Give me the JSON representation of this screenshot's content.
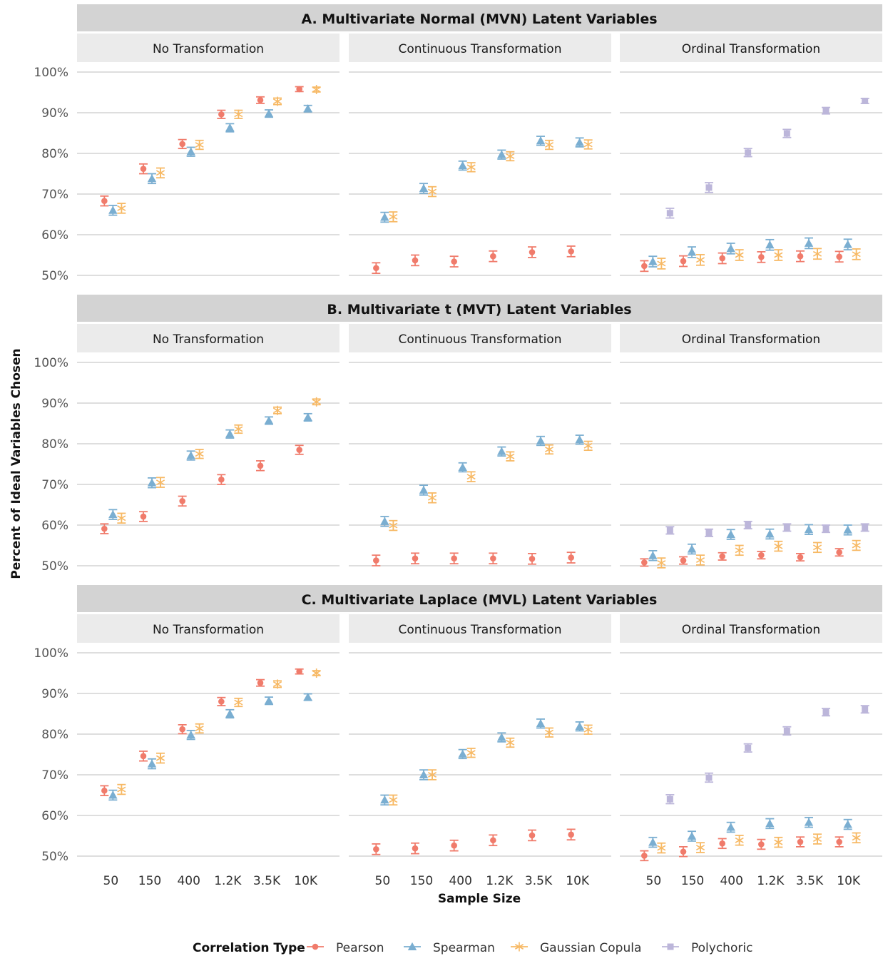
{
  "chart_data": {
    "type": "scatter",
    "ylabel": "Percent of Ideal Variables Chosen",
    "xlabel": "Sample Size",
    "categories": [
      "50",
      "150",
      "400",
      "1.2K",
      "3.5K",
      "10K"
    ],
    "y_ticks": [
      "50%",
      "60%",
      "70%",
      "80%",
      "90%",
      "100%"
    ],
    "ylim": [
      48,
      103
    ],
    "grid": true,
    "legend": {
      "title": "Correlation Type",
      "position": "bottom",
      "items": [
        {
          "name": "Pearson",
          "color": "#F07B6B",
          "marker": "circle"
        },
        {
          "name": "Spearman",
          "color": "#7AAED1",
          "marker": "triangle"
        },
        {
          "name": "Gaussian Copula",
          "color": "#F7B965",
          "marker": "asterisk"
        },
        {
          "name": "Polychoric",
          "color": "#BCB6DA",
          "marker": "square"
        }
      ]
    },
    "column_titles": [
      "No Transformation",
      "Continuous Transformation",
      "Ordinal Transformation"
    ],
    "rows": [
      {
        "title": "A.  Multivariate Normal (MVN) Latent Variables",
        "panels": [
          {
            "series": [
              {
                "name": "Pearson",
                "values": [
                  68.3,
                  76.2,
                  82.3,
                  89.6,
                  93.1,
                  95.8
                ],
                "errors": [
                  1.2,
                  1.2,
                  1.1,
                  1.0,
                  0.8,
                  0.6
                ]
              },
              {
                "name": "Spearman",
                "values": [
                  66.0,
                  73.8,
                  80.4,
                  86.3,
                  89.8,
                  91.0
                ],
                "errors": [
                  1.2,
                  1.2,
                  1.1,
                  1.0,
                  0.9,
                  0.8
                ]
              },
              {
                "name": "Gaussian Copula",
                "values": [
                  66.5,
                  75.2,
                  82.1,
                  89.6,
                  92.8,
                  95.7
                ],
                "errors": [
                  1.2,
                  1.2,
                  1.1,
                  1.0,
                  0.8,
                  0.6
                ]
              }
            ]
          },
          {
            "series": [
              {
                "name": "Pearson",
                "values": [
                  51.8,
                  53.7,
                  53.4,
                  54.7,
                  55.7,
                  55.9
                ],
                "errors": [
                  1.3,
                  1.3,
                  1.3,
                  1.3,
                  1.3,
                  1.3
                ]
              },
              {
                "name": "Spearman",
                "values": [
                  64.3,
                  71.4,
                  77.0,
                  79.7,
                  83.1,
                  82.7
                ],
                "errors": [
                  1.2,
                  1.2,
                  1.1,
                  1.1,
                  1.1,
                  1.1
                ]
              },
              {
                "name": "Gaussian Copula",
                "values": [
                  64.4,
                  70.6,
                  76.6,
                  79.3,
                  82.1,
                  82.2
                ],
                "errors": [
                  1.2,
                  1.2,
                  1.1,
                  1.1,
                  1.1,
                  1.1
                ]
              }
            ]
          },
          {
            "series": [
              {
                "name": "Pearson",
                "values": [
                  52.3,
                  53.5,
                  54.2,
                  54.5,
                  54.7,
                  54.6
                ],
                "errors": [
                  1.3,
                  1.3,
                  1.3,
                  1.3,
                  1.3,
                  1.3
                ]
              },
              {
                "name": "Spearman",
                "values": [
                  53.4,
                  55.7,
                  56.6,
                  57.5,
                  57.9,
                  57.6
                ],
                "errors": [
                  1.3,
                  1.3,
                  1.3,
                  1.3,
                  1.3,
                  1.3
                ]
              },
              {
                "name": "Gaussian Copula",
                "values": [
                  52.9,
                  53.8,
                  55.0,
                  55.0,
                  55.3,
                  55.2
                ],
                "errors": [
                  1.3,
                  1.3,
                  1.3,
                  1.3,
                  1.3,
                  1.3
                ]
              },
              {
                "name": "Polychoric",
                "values": [
                  65.3,
                  71.6,
                  80.2,
                  84.9,
                  90.5,
                  92.9
                ],
                "errors": [
                  1.2,
                  1.2,
                  1.0,
                  1.0,
                  0.8,
                  0.6
                ]
              }
            ]
          }
        ]
      },
      {
        "title": "B.  Multivariate t (MVT) Latent Variables",
        "panels": [
          {
            "series": [
              {
                "name": "Pearson",
                "values": [
                  59.1,
                  62.1,
                  65.9,
                  71.2,
                  74.6,
                  78.5
                ],
                "errors": [
                  1.2,
                  1.2,
                  1.2,
                  1.2,
                  1.2,
                  1.1
                ]
              },
              {
                "name": "Spearman",
                "values": [
                  62.6,
                  70.4,
                  77.1,
                  82.4,
                  85.7,
                  86.5
                ],
                "errors": [
                  1.2,
                  1.2,
                  1.1,
                  1.0,
                  0.9,
                  0.9
                ]
              },
              {
                "name": "Gaussian Copula",
                "values": [
                  61.7,
                  70.5,
                  77.5,
                  83.6,
                  88.2,
                  90.3
                ],
                "errors": [
                  1.2,
                  1.2,
                  1.1,
                  1.0,
                  0.8,
                  0.7
                ]
              }
            ]
          },
          {
            "series": [
              {
                "name": "Pearson",
                "values": [
                  51.3,
                  51.8,
                  51.8,
                  51.8,
                  51.7,
                  52.0
                ],
                "errors": [
                  1.3,
                  1.3,
                  1.3,
                  1.3,
                  1.3,
                  1.3
                ]
              },
              {
                "name": "Spearman",
                "values": [
                  60.9,
                  68.6,
                  74.2,
                  78.1,
                  80.7,
                  81.0
                ],
                "errors": [
                  1.2,
                  1.2,
                  1.1,
                  1.1,
                  1.1,
                  1.1
                ]
              },
              {
                "name": "Gaussian Copula",
                "values": [
                  59.9,
                  66.7,
                  71.9,
                  76.9,
                  78.6,
                  79.5
                ],
                "errors": [
                  1.2,
                  1.2,
                  1.2,
                  1.1,
                  1.1,
                  1.1
                ]
              }
            ]
          },
          {
            "series": [
              {
                "name": "Pearson",
                "values": [
                  50.8,
                  51.3,
                  52.3,
                  52.6,
                  52.1,
                  53.3
                ],
                "errors": [
                  0.9,
                  0.9,
                  0.9,
                  0.9,
                  0.9,
                  0.9
                ]
              },
              {
                "name": "Spearman",
                "values": [
                  52.5,
                  54.1,
                  57.7,
                  57.8,
                  58.9,
                  58.8
                ],
                "errors": [
                  1.2,
                  1.2,
                  1.2,
                  1.2,
                  1.2,
                  1.2
                ]
              },
              {
                "name": "Gaussian Copula",
                "values": [
                  50.7,
                  51.4,
                  53.8,
                  54.8,
                  54.5,
                  55.0
                ],
                "errors": [
                  1.2,
                  1.2,
                  1.2,
                  1.2,
                  1.2,
                  1.2
                ]
              },
              {
                "name": "Polychoric",
                "values": [
                  58.7,
                  58.1,
                  60.0,
                  59.4,
                  59.1,
                  59.4
                ],
                "errors": [
                  0.9,
                  0.9,
                  0.9,
                  0.9,
                  0.9,
                  0.9
                ]
              }
            ]
          }
        ]
      },
      {
        "title": "C.  Multivariate Laplace (MVL) Latent Variables",
        "panels": [
          {
            "series": [
              {
                "name": "Pearson",
                "values": [
                  66.1,
                  74.6,
                  81.2,
                  88.0,
                  92.6,
                  95.4
                ],
                "errors": [
                  1.2,
                  1.2,
                  1.1,
                  1.0,
                  0.8,
                  0.6
                ]
              },
              {
                "name": "Spearman",
                "values": [
                  65.0,
                  72.7,
                  79.8,
                  85.0,
                  88.2,
                  89.1
                ],
                "errors": [
                  1.2,
                  1.2,
                  1.1,
                  1.0,
                  0.9,
                  0.8
                ]
              },
              {
                "name": "Gaussian Copula",
                "values": [
                  66.4,
                  74.1,
                  81.4,
                  87.8,
                  92.3,
                  95.0
                ],
                "errors": [
                  1.2,
                  1.2,
                  1.1,
                  1.0,
                  0.8,
                  0.6
                ]
              }
            ]
          },
          {
            "series": [
              {
                "name": "Pearson",
                "values": [
                  51.7,
                  51.9,
                  52.6,
                  53.9,
                  55.1,
                  55.3
                ],
                "errors": [
                  1.3,
                  1.3,
                  1.3,
                  1.3,
                  1.3,
                  1.3
                ]
              },
              {
                "name": "Spearman",
                "values": [
                  63.8,
                  70.0,
                  75.1,
                  79.2,
                  82.6,
                  81.9
                ],
                "errors": [
                  1.2,
                  1.2,
                  1.1,
                  1.1,
                  1.1,
                  1.1
                ]
              },
              {
                "name": "Gaussian Copula",
                "values": [
                  63.8,
                  70.0,
                  75.4,
                  77.9,
                  80.4,
                  81.1
                ],
                "errors": [
                  1.2,
                  1.2,
                  1.1,
                  1.1,
                  1.1,
                  1.1
                ]
              }
            ]
          },
          {
            "series": [
              {
                "name": "Pearson",
                "values": [
                  50.1,
                  51.1,
                  53.1,
                  52.9,
                  53.5,
                  53.5
                ],
                "errors": [
                  1.2,
                  1.2,
                  1.2,
                  1.2,
                  1.2,
                  1.2
                ]
              },
              {
                "name": "Spearman",
                "values": [
                  53.4,
                  54.9,
                  57.1,
                  58.0,
                  58.3,
                  57.8
                ],
                "errors": [
                  1.2,
                  1.2,
                  1.2,
                  1.2,
                  1.2,
                  1.2
                ]
              },
              {
                "name": "Gaussian Copula",
                "values": [
                  52.0,
                  52.1,
                  53.9,
                  53.4,
                  54.2,
                  54.5
                ],
                "errors": [
                  1.2,
                  1.2,
                  1.2,
                  1.2,
                  1.2,
                  1.2
                ]
              },
              {
                "name": "Polychoric",
                "values": [
                  64.0,
                  69.3,
                  76.6,
                  80.8,
                  85.4,
                  86.1
                ],
                "errors": [
                  1.1,
                  1.1,
                  1.0,
                  1.0,
                  0.9,
                  0.9
                ]
              }
            ]
          }
        ]
      }
    ]
  }
}
